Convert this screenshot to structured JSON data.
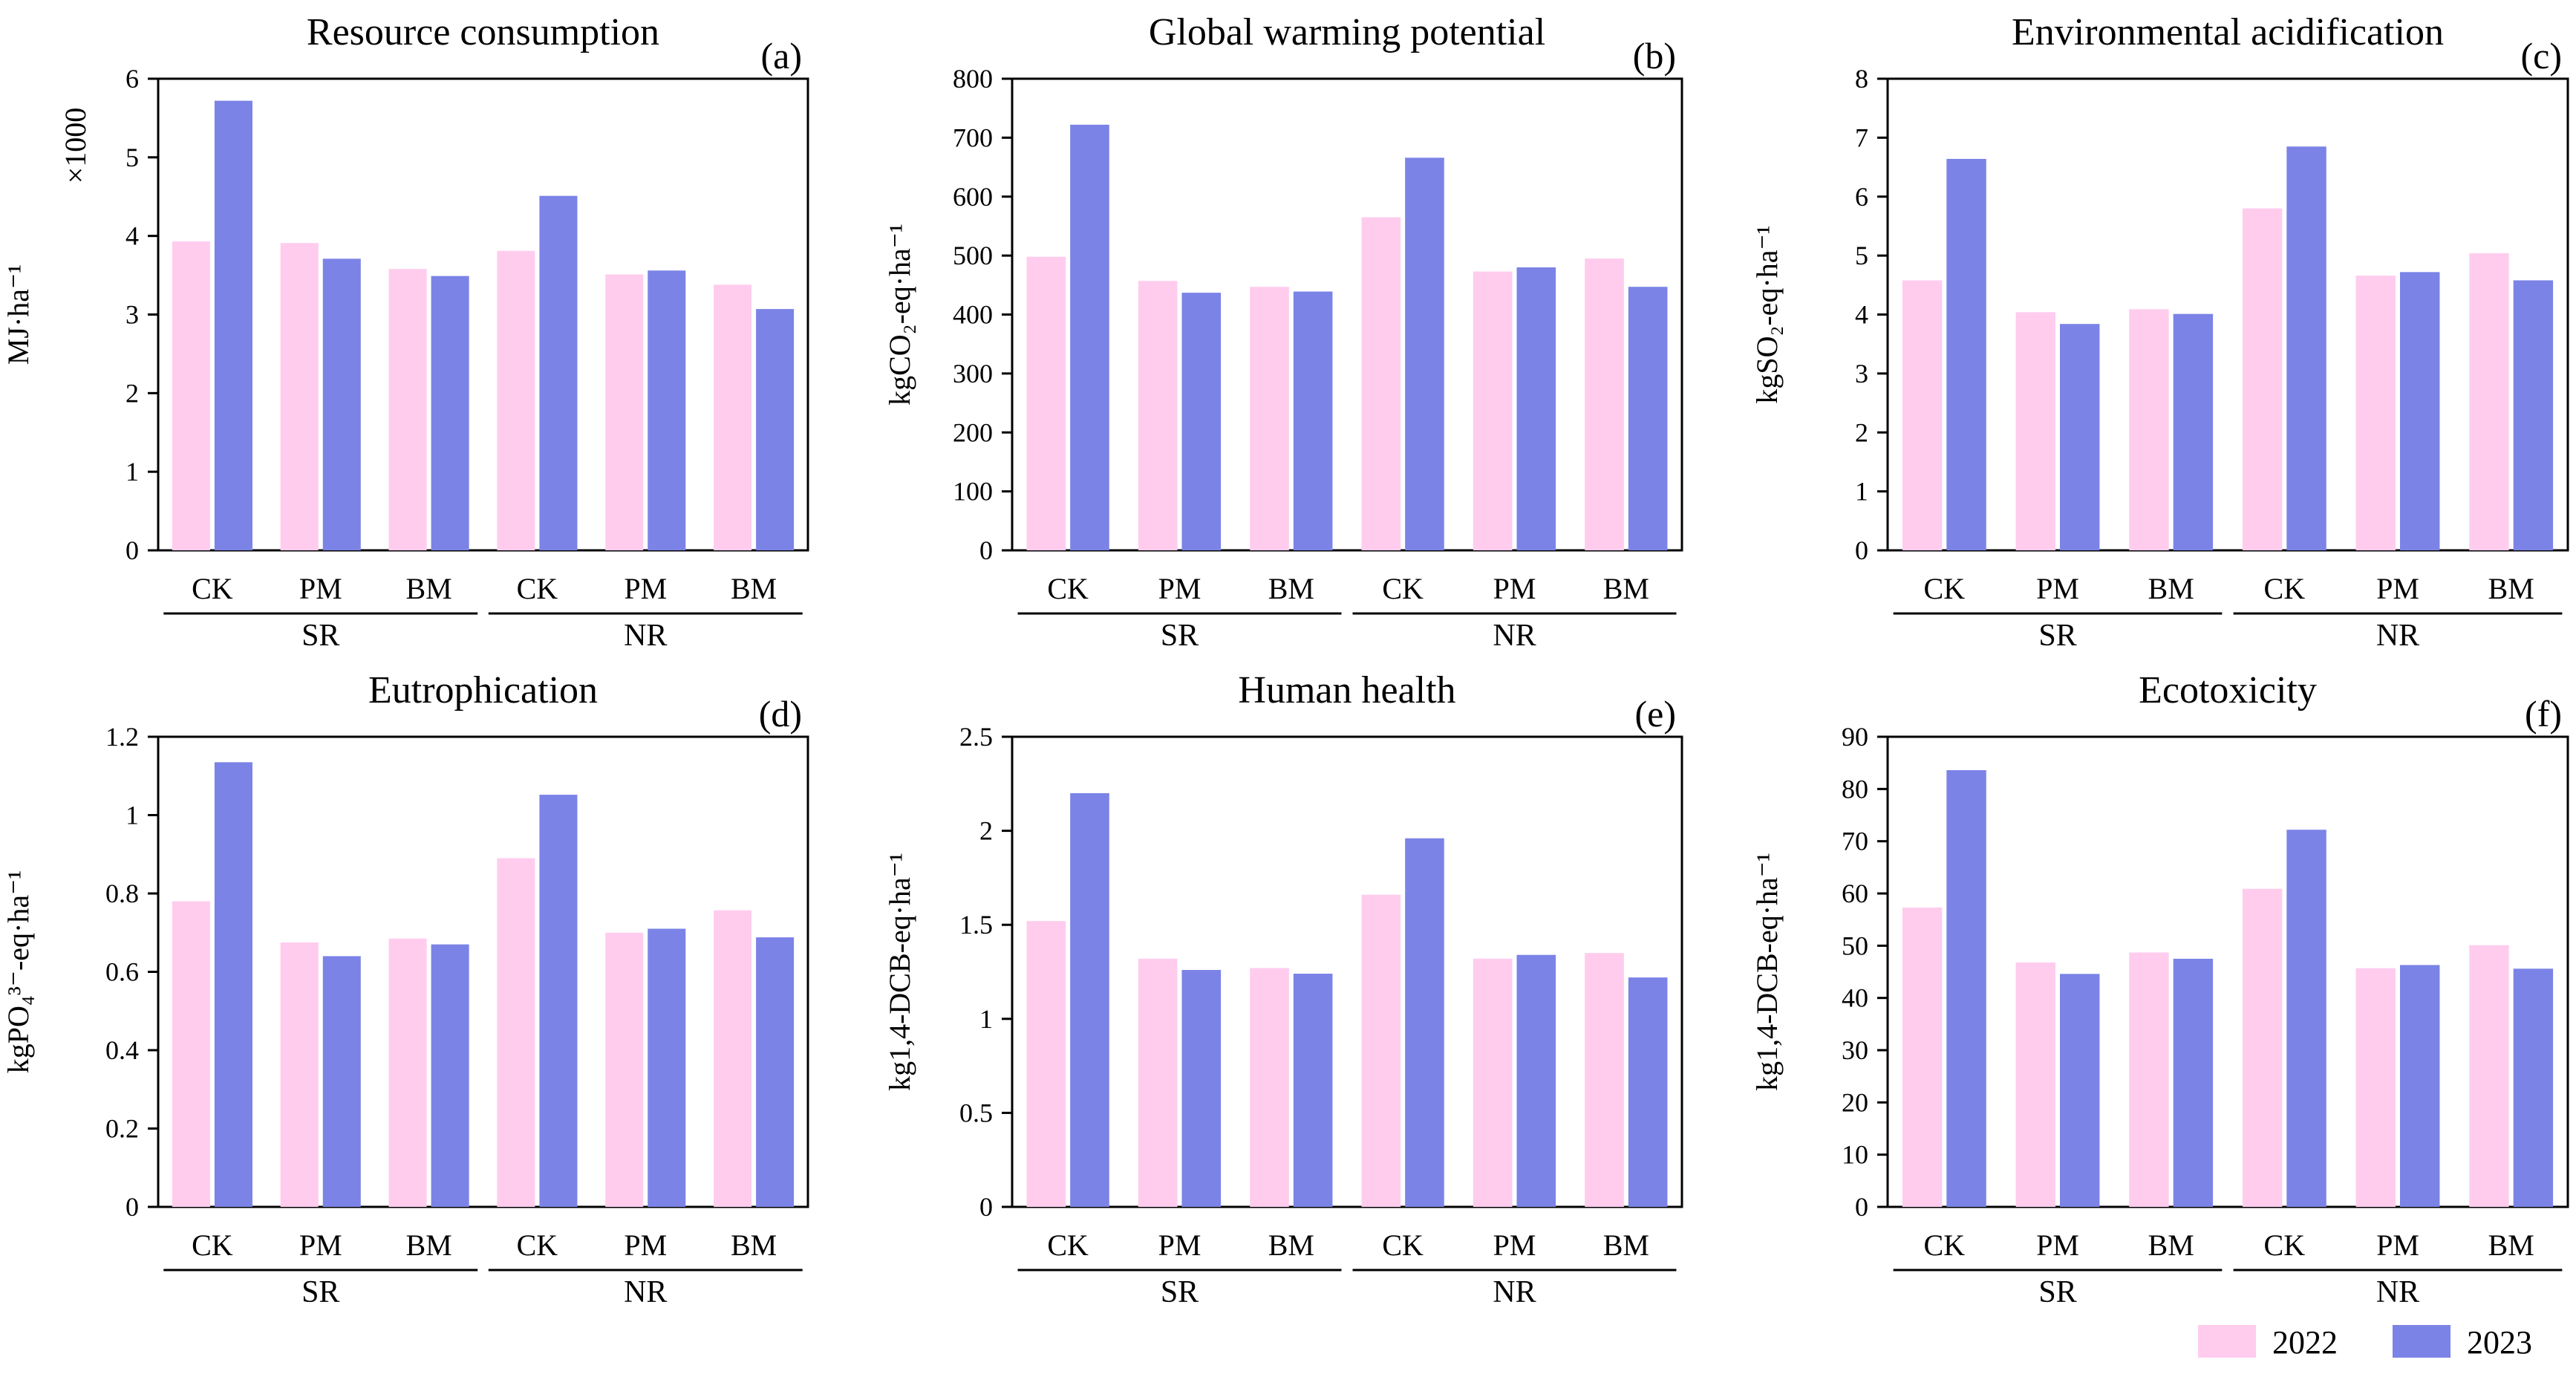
{
  "legend": [
    {
      "label": "2022",
      "color": "#FFCCEE"
    },
    {
      "label": "2023",
      "color": "#7B83E6"
    }
  ],
  "chart_data": [
    {
      "type": "bar",
      "title": "Resource consumption",
      "letter": "(a)",
      "ylabel": "MJ·ha⁻¹",
      "multiplier": "×1000",
      "ylim": [
        0,
        6
      ],
      "yticks": [
        "0",
        "1",
        "2",
        "3",
        "4",
        "5",
        "6"
      ],
      "categories": [
        "CK",
        "PM",
        "BM",
        "CK",
        "PM",
        "BM"
      ],
      "groups": [
        "SR",
        "NR"
      ],
      "series": [
        {
          "name": "2022",
          "values": [
            3.93,
            3.91,
            3.58,
            3.81,
            3.51,
            3.38
          ]
        },
        {
          "name": "2023",
          "values": [
            5.72,
            3.71,
            3.49,
            4.51,
            3.56,
            3.07
          ]
        }
      ]
    },
    {
      "type": "bar",
      "title": "Global warming potential",
      "letter": "(b)",
      "ylabel": "kgCO₂-eq·ha⁻¹",
      "ylim": [
        0,
        800
      ],
      "yticks": [
        "0",
        "100",
        "200",
        "300",
        "400",
        "500",
        "600",
        "700",
        "800"
      ],
      "categories": [
        "CK",
        "PM",
        "BM",
        "CK",
        "PM",
        "BM"
      ],
      "groups": [
        "SR",
        "NR"
      ],
      "series": [
        {
          "name": "2022",
          "values": [
            498,
            457,
            447,
            565,
            473,
            495
          ]
        },
        {
          "name": "2023",
          "values": [
            722,
            437,
            439,
            666,
            480,
            447
          ]
        }
      ]
    },
    {
      "type": "bar",
      "title": "Environmental acidification",
      "letter": "(c)",
      "ylabel": "kgSO₂-eq·ha⁻¹",
      "ylim": [
        0,
        8
      ],
      "yticks": [
        "0",
        "1",
        "2",
        "3",
        "4",
        "5",
        "6",
        "7",
        "8"
      ],
      "categories": [
        "CK",
        "PM",
        "BM",
        "CK",
        "PM",
        "BM"
      ],
      "groups": [
        "SR",
        "NR"
      ],
      "series": [
        {
          "name": "2022",
          "values": [
            4.58,
            4.04,
            4.09,
            5.8,
            4.66,
            5.04
          ]
        },
        {
          "name": "2023",
          "values": [
            6.64,
            3.84,
            4.01,
            6.85,
            4.72,
            4.58
          ]
        }
      ]
    },
    {
      "type": "bar",
      "title": "Eutrophication",
      "letter": "(d)",
      "ylabel": "kgPO₄³⁻-eq·ha⁻¹",
      "ylim": [
        0,
        1.2
      ],
      "yticks": [
        "0",
        "0.2",
        "0.4",
        "0.6",
        "0.8",
        "1",
        "1.2"
      ],
      "categories": [
        "CK",
        "PM",
        "BM",
        "CK",
        "PM",
        "BM"
      ],
      "groups": [
        "SR",
        "NR"
      ],
      "series": [
        {
          "name": "2022",
          "values": [
            0.78,
            0.675,
            0.685,
            0.89,
            0.7,
            0.757
          ]
        },
        {
          "name": "2023",
          "values": [
            1.135,
            0.64,
            0.67,
            1.052,
            0.71,
            0.688
          ]
        }
      ]
    },
    {
      "type": "bar",
      "title": "Human health",
      "letter": "(e)",
      "ylabel": "kg1,4-DCB-eq·ha⁻¹",
      "ylim": [
        0,
        2.5
      ],
      "yticks": [
        "0",
        "0.5",
        "1",
        "1.5",
        "2",
        "2.5"
      ],
      "categories": [
        "CK",
        "PM",
        "BM",
        "CK",
        "PM",
        "BM"
      ],
      "groups": [
        "SR",
        "NR"
      ],
      "series": [
        {
          "name": "2022",
          "values": [
            1.52,
            1.32,
            1.27,
            1.66,
            1.32,
            1.35
          ]
        },
        {
          "name": "2023",
          "values": [
            2.2,
            1.26,
            1.24,
            1.96,
            1.34,
            1.22
          ]
        }
      ]
    },
    {
      "type": "bar",
      "title": "Ecotoxicity",
      "letter": "(f)",
      "ylabel": "kg1,4-DCB-eq·ha⁻¹",
      "ylim": [
        0,
        90
      ],
      "yticks": [
        "0",
        "10",
        "20",
        "30",
        "40",
        "50",
        "60",
        "70",
        "80",
        "90"
      ],
      "categories": [
        "CK",
        "PM",
        "BM",
        "CK",
        "PM",
        "BM"
      ],
      "groups": [
        "SR",
        "NR"
      ],
      "series": [
        {
          "name": "2022",
          "values": [
            57.3,
            46.8,
            48.7,
            60.9,
            45.7,
            50.1
          ]
        },
        {
          "name": "2023",
          "values": [
            83.6,
            44.6,
            47.5,
            72.2,
            46.3,
            45.6
          ]
        }
      ]
    }
  ]
}
